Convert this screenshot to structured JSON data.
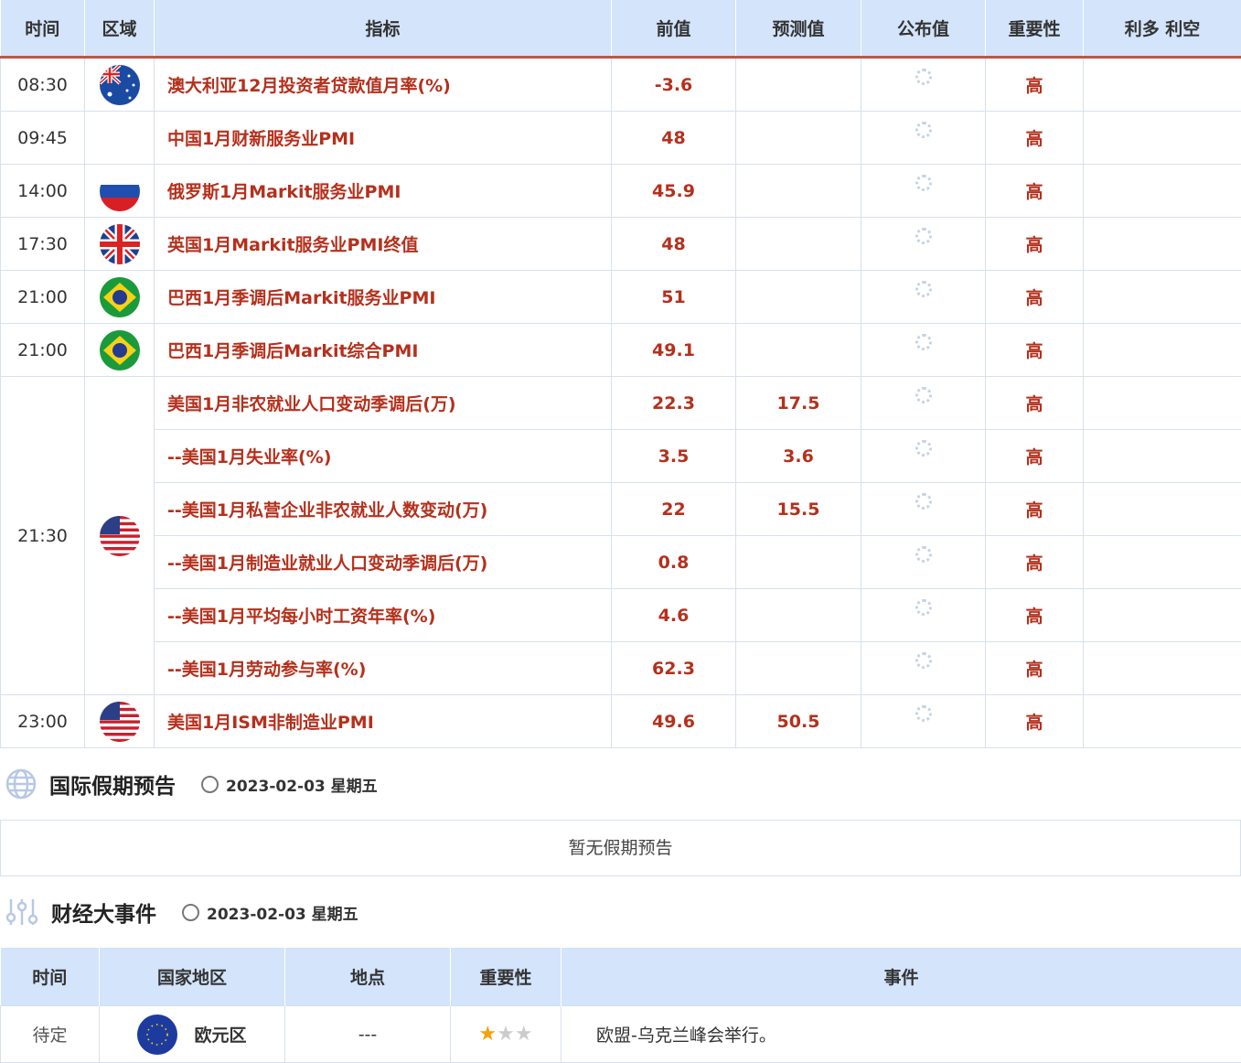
{
  "calendar": {
    "headers": [
      "时间",
      "区域",
      "指标",
      "前值",
      "预测值",
      "公布值",
      "重要性",
      "利多 利空"
    ],
    "rows": [
      {
        "time": "08:30",
        "flag": "australia",
        "indicator": "澳大利亚12月投资者贷款值月率(%)",
        "previous": "-3.6",
        "forecast": "",
        "importance": "高"
      },
      {
        "time": "09:45",
        "flag": "",
        "indicator": "中国1月财新服务业PMI",
        "previous": "48",
        "forecast": "",
        "importance": "高"
      },
      {
        "time": "14:00",
        "flag": "russia",
        "indicator": "俄罗斯1月Markit服务业PMI",
        "previous": "45.9",
        "forecast": "",
        "importance": "高"
      },
      {
        "time": "17:30",
        "flag": "uk",
        "indicator": "英国1月Markit服务业PMI终值",
        "previous": "48",
        "forecast": "",
        "importance": "高"
      },
      {
        "time": "21:00",
        "flag": "brazil",
        "indicator": "巴西1月季调后Markit服务业PMI",
        "previous": "51",
        "forecast": "",
        "importance": "高"
      },
      {
        "time": "21:00",
        "flag": "brazil",
        "indicator": "巴西1月季调后Markit综合PMI",
        "previous": "49.1",
        "forecast": "",
        "importance": "高"
      },
      {
        "time": "21:30",
        "flag": "usa",
        "span": 6,
        "indicator": "美国1月非农就业人口变动季调后(万)",
        "previous": "22.3",
        "forecast": "17.5",
        "importance": "高"
      },
      {
        "indicator": "--美国1月失业率(%)",
        "previous": "3.5",
        "forecast": "3.6",
        "importance": "高"
      },
      {
        "indicator": "--美国1月私营企业非农就业人数变动(万)",
        "previous": "22",
        "forecast": "15.5",
        "importance": "高"
      },
      {
        "indicator": "--美国1月制造业就业人口变动季调后(万)",
        "previous": "0.8",
        "forecast": "",
        "importance": "高"
      },
      {
        "indicator": "--美国1月平均每小时工资年率(%)",
        "previous": "4.6",
        "forecast": "",
        "importance": "高"
      },
      {
        "indicator": "--美国1月劳动参与率(%)",
        "previous": "62.3",
        "forecast": "",
        "importance": "高"
      },
      {
        "time": "23:00",
        "flag": "usa",
        "indicator": "美国1月ISM非制造业PMI",
        "previous": "49.6",
        "forecast": "50.5",
        "importance": "高"
      }
    ]
  },
  "holiday": {
    "title": "国际假期预告",
    "date": "2023-02-03 星期五",
    "empty": "暂无假期预告"
  },
  "events": {
    "title": "财经大事件",
    "date": "2023-02-03 星期五",
    "headers": [
      "时间",
      "国家地区",
      "地点",
      "重要性",
      "事件"
    ],
    "rows": [
      {
        "time": "待定",
        "region": "欧元区",
        "flag": "eu",
        "location": "---",
        "stars": 1,
        "max_stars": 3,
        "event": "欧盟-乌克兰峰会举行。"
      }
    ]
  },
  "colors": {
    "header_bg": "#d3e4fb",
    "accent": "#b5301c",
    "star": "#f5a20b"
  }
}
